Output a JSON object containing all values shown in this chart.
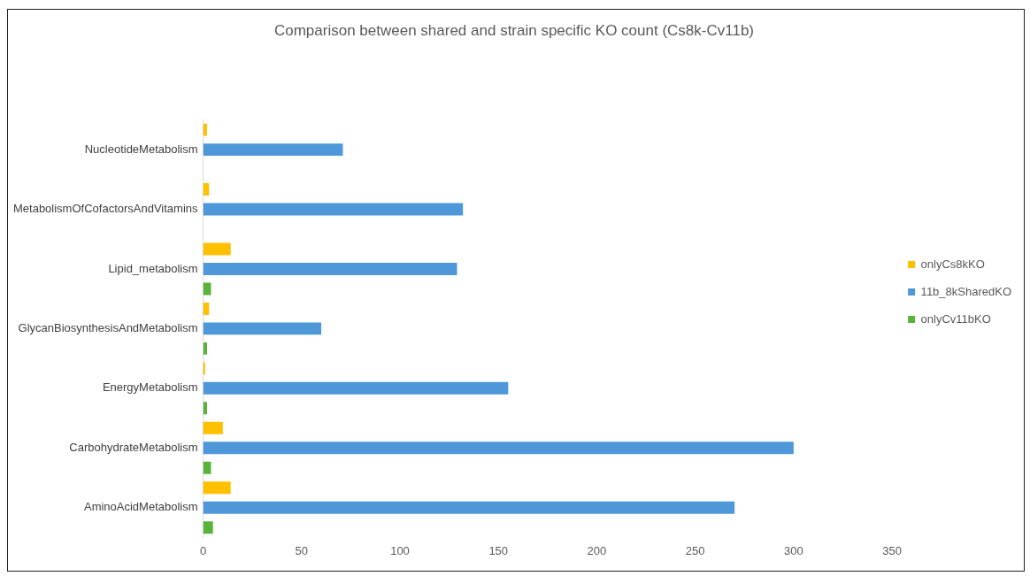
{
  "chart_data": {
    "type": "bar",
    "orientation": "horizontal",
    "title": "Comparison between shared and strain specific KO count (Cs8k-Cv11b)",
    "categories": [
      "NucleotideMetabolism",
      "MetabolismOfCofactorsAndVitamins",
      "Lipid_metabolism",
      "GlycanBiosynthesisAndMetabolism",
      "EnergyMetabolism",
      "CarbohydrateMetabolism",
      "AminoAcidMetabolism"
    ],
    "series": [
      {
        "name": "onlyCs8kKO",
        "color": "#ffc000",
        "values": [
          2,
          3,
          14,
          3,
          1,
          10,
          14
        ]
      },
      {
        "name": "11b_8kSharedKO",
        "color": "#4e98da",
        "values": [
          71,
          132,
          129,
          60,
          155,
          300,
          270
        ]
      },
      {
        "name": "onlyCv11bKO",
        "color": "#59b33b",
        "values": [
          0,
          null,
          4,
          2,
          2,
          4,
          5
        ]
      }
    ],
    "xlim": [
      0,
      350
    ],
    "xticks": [
      0,
      50,
      100,
      150,
      200,
      250,
      300,
      350
    ],
    "grid": false,
    "legend": "right"
  }
}
